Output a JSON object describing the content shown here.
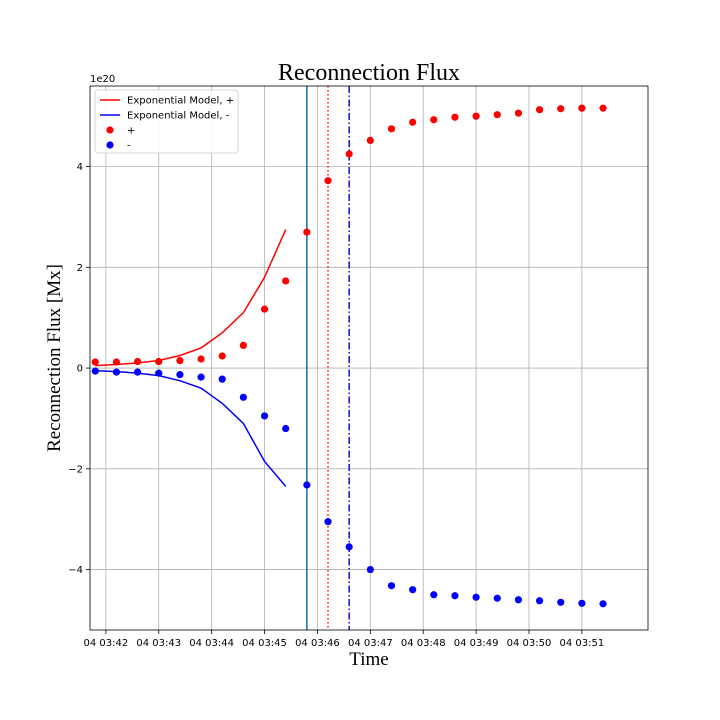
{
  "chart_data": {
    "type": "scatter",
    "title": "Reconnection Flux",
    "xlabel": "Time",
    "ylabel": "Reconnection Flux [Mx]",
    "y_offset_label": "1e20",
    "grid": true,
    "legend_position": "top-left",
    "x_unit": "minutes after 04 03:42",
    "xlim": [
      -0.3,
      10.25
    ],
    "ylim": [
      -5.2,
      5.6
    ],
    "x_ticks": [
      {
        "value": 0,
        "label": "04 03:42"
      },
      {
        "value": 1,
        "label": "04 03:43"
      },
      {
        "value": 2,
        "label": "04 03:44"
      },
      {
        "value": 3,
        "label": "04 03:45"
      },
      {
        "value": 4,
        "label": "04 03:46"
      },
      {
        "value": 5,
        "label": "04 03:47"
      },
      {
        "value": 6,
        "label": "04 03:48"
      },
      {
        "value": 7,
        "label": "04 03:49"
      },
      {
        "value": 8,
        "label": "04 03:50"
      },
      {
        "value": 9,
        "label": "04 03:51"
      }
    ],
    "y_ticks": [
      {
        "value": -4,
        "label": "−4"
      },
      {
        "value": -2,
        "label": "−2"
      },
      {
        "value": 0,
        "label": "0"
      },
      {
        "value": 2,
        "label": "2"
      },
      {
        "value": 4,
        "label": "4"
      }
    ],
    "series": [
      {
        "name": "Exponential Model, +",
        "kind": "line",
        "color": "#ff0000",
        "x": [
          -0.2,
          0.2,
          0.6,
          1.0,
          1.4,
          1.8,
          2.2,
          2.6,
          3.0,
          3.4
        ],
        "y": [
          0.05,
          0.07,
          0.1,
          0.15,
          0.25,
          0.4,
          0.7,
          1.1,
          1.8,
          2.75
        ]
      },
      {
        "name": "Exponential Model, -",
        "kind": "line",
        "color": "#0000ff",
        "x": [
          -0.2,
          0.2,
          0.6,
          1.0,
          1.4,
          1.8,
          2.2,
          2.6,
          3.0,
          3.4
        ],
        "y": [
          -0.05,
          -0.07,
          -0.1,
          -0.15,
          -0.25,
          -0.4,
          -0.7,
          -1.1,
          -1.85,
          -2.35
        ]
      },
      {
        "name": "+",
        "kind": "points",
        "color": "#ff0000",
        "x": [
          -0.2,
          0.2,
          0.6,
          1.0,
          1.4,
          1.8,
          2.2,
          2.6,
          3.0,
          3.4,
          3.8,
          4.2,
          4.6,
          5.0,
          5.4,
          5.8,
          6.2,
          6.6,
          7.0,
          7.4,
          7.8,
          8.2,
          8.6,
          9.0,
          9.4
        ],
        "y": [
          0.12,
          0.12,
          0.13,
          0.13,
          0.15,
          0.18,
          0.24,
          0.45,
          1.17,
          1.73,
          2.7,
          3.72,
          4.25,
          4.52,
          4.75,
          4.88,
          4.93,
          4.98,
          5.0,
          5.03,
          5.06,
          5.13,
          5.15,
          5.16,
          5.16
        ]
      },
      {
        "name": "-",
        "kind": "points",
        "color": "#0000ff",
        "x": [
          -0.2,
          0.2,
          0.6,
          1.0,
          1.4,
          1.8,
          2.2,
          2.6,
          3.0,
          3.4,
          3.8,
          4.2,
          4.6,
          5.0,
          5.4,
          5.8,
          6.2,
          6.6,
          7.0,
          7.4,
          7.8,
          8.2,
          8.6,
          9.0,
          9.4
        ],
        "y": [
          -0.06,
          -0.08,
          -0.08,
          -0.1,
          -0.13,
          -0.18,
          -0.22,
          -0.58,
          -0.95,
          -1.2,
          -2.32,
          -3.05,
          -3.55,
          -4.0,
          -4.32,
          -4.4,
          -4.5,
          -4.52,
          -4.55,
          -4.57,
          -4.6,
          -4.62,
          -4.65,
          -4.67,
          -4.68
        ]
      }
    ],
    "vertical_lines": [
      {
        "x": 3.8,
        "style": "solid",
        "color": "#1f77b4"
      },
      {
        "x": 4.2,
        "style": "dotted",
        "color": "#ff0000"
      },
      {
        "x": 4.6,
        "style": "dashdot",
        "color": "#0000cc"
      }
    ]
  }
}
